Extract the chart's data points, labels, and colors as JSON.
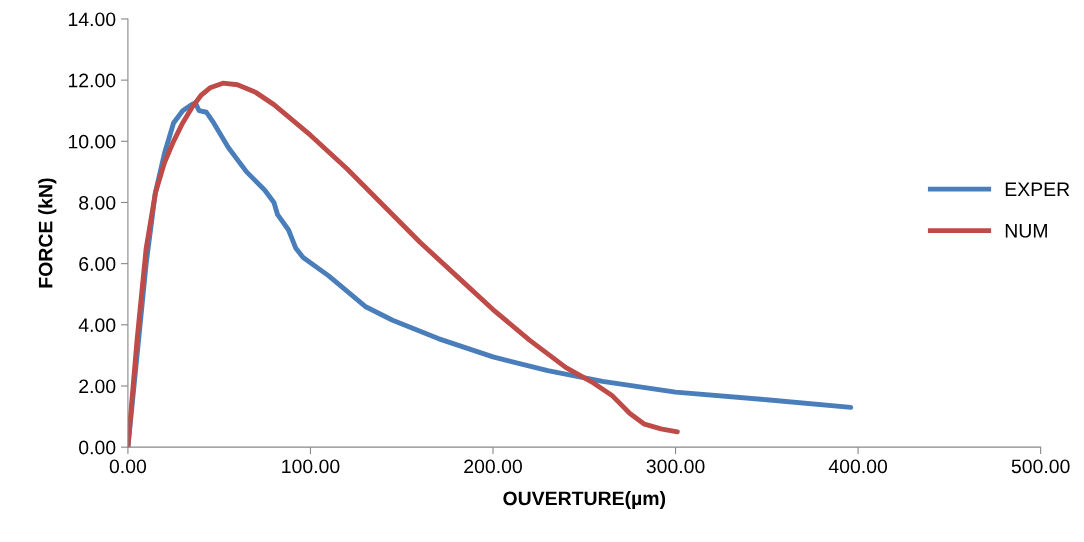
{
  "chart_data": {
    "type": "line",
    "xlabel": "OUVERTURE(µm)",
    "ylabel": "FORCE (kN)",
    "xlim": [
      0,
      500
    ],
    "ylim": [
      0,
      14
    ],
    "xticks": [
      {
        "value": 0,
        "label": "0.00"
      },
      {
        "value": 100,
        "label": "100.00"
      },
      {
        "value": 200,
        "label": "200.00"
      },
      {
        "value": 300,
        "label": "300.00"
      },
      {
        "value": 400,
        "label": "400.00"
      },
      {
        "value": 500,
        "label": "500.00"
      }
    ],
    "yticks": [
      {
        "value": 0,
        "label": "0.00"
      },
      {
        "value": 2,
        "label": "2.00"
      },
      {
        "value": 4,
        "label": "4.00"
      },
      {
        "value": 6,
        "label": "6.00"
      },
      {
        "value": 8,
        "label": "8.00"
      },
      {
        "value": 10,
        "label": "10.00"
      },
      {
        "value": 12,
        "label": "12.00"
      },
      {
        "value": 14,
        "label": "14.00"
      }
    ],
    "grid": false,
    "legend": "right",
    "marker": "none",
    "line_style": "solid",
    "series": [
      {
        "name": "EXPER",
        "color": "#4a7ebb",
        "x": [
          0,
          5,
          10,
          15,
          20,
          25,
          30,
          35,
          37,
          39,
          43,
          47,
          55,
          65,
          75,
          80,
          82,
          88,
          92,
          96,
          110,
          120,
          130,
          145,
          170,
          200,
          230,
          260,
          300,
          350,
          396
        ],
        "values": [
          0,
          3,
          6,
          8.3,
          9.6,
          10.6,
          11.0,
          11.2,
          11.25,
          11.0,
          10.95,
          10.6,
          9.8,
          9.0,
          8.4,
          8.0,
          7.6,
          7.1,
          6.5,
          6.2,
          5.6,
          5.1,
          4.6,
          4.15,
          3.55,
          2.95,
          2.5,
          2.15,
          1.8,
          1.55,
          1.3
        ]
      },
      {
        "name": "NUM",
        "color": "#be4b48",
        "x": [
          0,
          5,
          10,
          15,
          20,
          25,
          30,
          35,
          40,
          45,
          52,
          60,
          70,
          80,
          100,
          120,
          140,
          160,
          180,
          200,
          220,
          240,
          255,
          265,
          275,
          283,
          292,
          301
        ],
        "values": [
          0,
          3.5,
          6.5,
          8.3,
          9.3,
          10.0,
          10.6,
          11.1,
          11.5,
          11.75,
          11.9,
          11.85,
          11.6,
          11.2,
          10.2,
          9.1,
          7.9,
          6.7,
          5.6,
          4.5,
          3.5,
          2.6,
          2.1,
          1.7,
          1.1,
          0.75,
          0.6,
          0.5
        ]
      }
    ]
  }
}
